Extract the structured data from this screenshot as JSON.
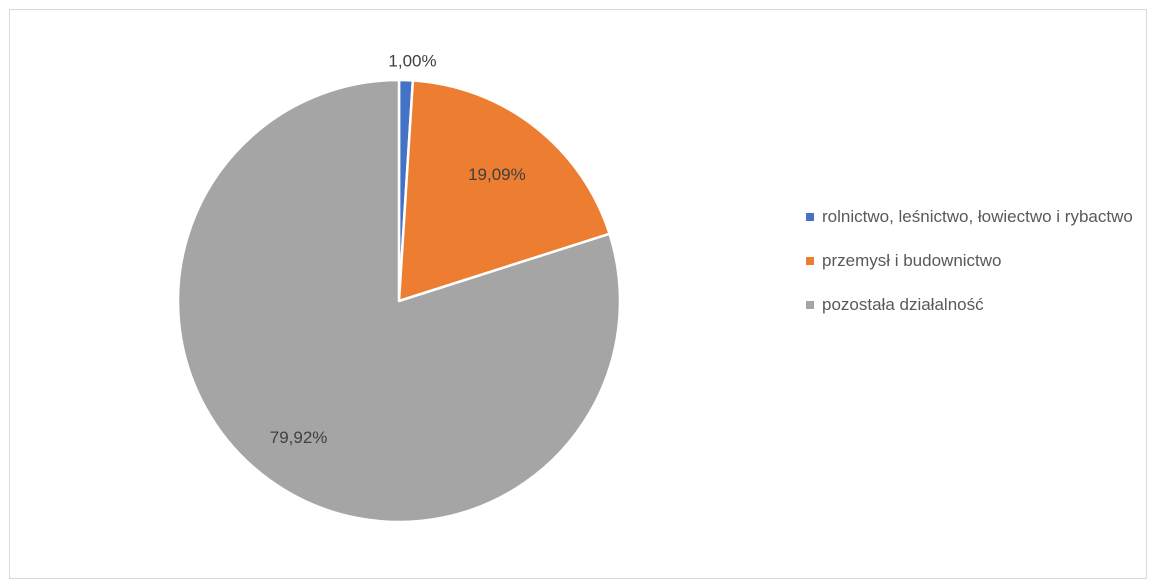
{
  "chart_data": {
    "type": "pie",
    "title": "",
    "slices": [
      {
        "label": "rolnictwo, leśnictwo, łowiectwo i rybactwo",
        "value": 1.0,
        "display": "1,00%",
        "color": "#4472c4"
      },
      {
        "label": "przemysł i budownictwo",
        "value": 19.09,
        "display": "19,09%",
        "color": "#ed7d31"
      },
      {
        "label": "pozostała działalność",
        "value": 79.92,
        "display": "79,92%",
        "color": "#a5a5a5"
      }
    ],
    "legend_position": "right"
  }
}
